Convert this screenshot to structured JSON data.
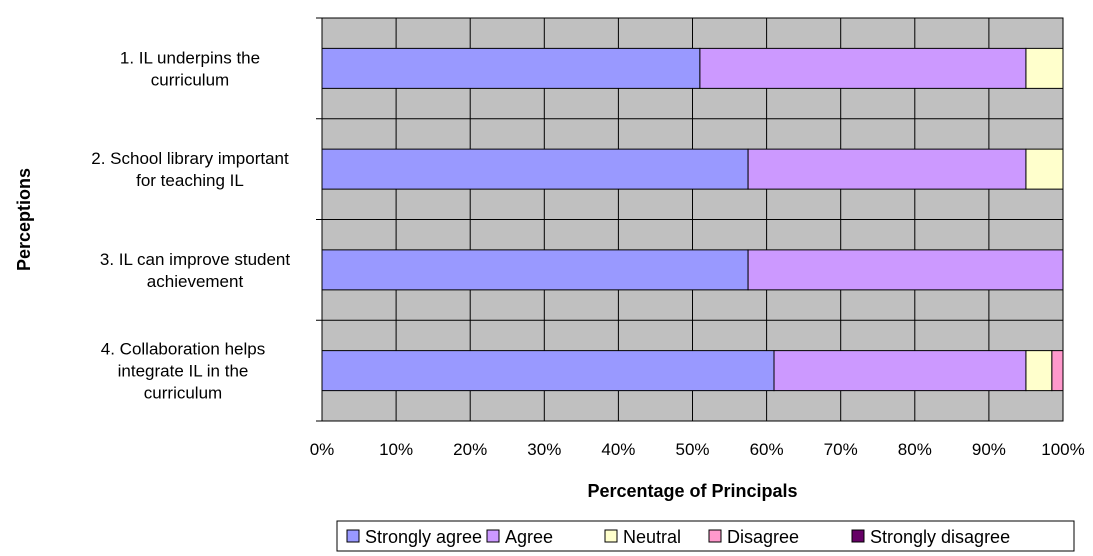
{
  "chart_data": {
    "type": "bar",
    "orientation": "horizontal",
    "stacked": true,
    "percent_stacked": true,
    "categories": [
      [
        "1. IL underpins the",
        "curriculum"
      ],
      [
        "2. School library important",
        "for teaching IL"
      ],
      [
        "3. IL can improve student",
        "achievement"
      ],
      [
        "4. Collaboration helps",
        "integrate IL in the",
        "curriculum"
      ]
    ],
    "series": [
      {
        "name": "Strongly agree",
        "color": "#9999ff",
        "values": [
          51,
          57.5,
          57.5,
          61
        ]
      },
      {
        "name": "Agree",
        "color": "#cc99ff",
        "values": [
          44,
          37.5,
          42.5,
          34
        ]
      },
      {
        "name": "Neutral",
        "color": "#ffffcc",
        "values": [
          5,
          5,
          0,
          3.5
        ]
      },
      {
        "name": "Disagree",
        "color": "#ff99cc",
        "values": [
          0,
          0,
          0,
          1.5
        ]
      },
      {
        "name": "Strongly disagree",
        "color": "#660066",
        "values": [
          0,
          0,
          0,
          0
        ]
      }
    ],
    "xlabel": "Percentage of Principals",
    "ylabel": "Perceptions",
    "xlim": [
      0,
      100
    ],
    "xticks": [
      "0%",
      "10%",
      "20%",
      "30%",
      "40%",
      "50%",
      "60%",
      "70%",
      "80%",
      "90%",
      "100%"
    ],
    "plot_background": "#c0c0c0",
    "grid": true,
    "legend_position": "bottom"
  }
}
